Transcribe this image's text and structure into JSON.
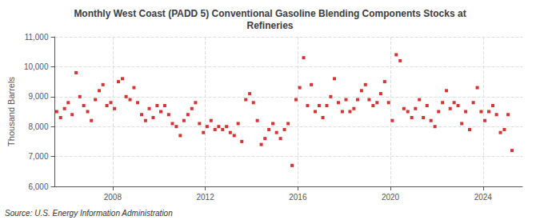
{
  "chart_data": {
    "type": "scatter",
    "title": "Monthly West Coast (PADD 5) Conventional Gasoline Blending Components Stocks at\nRefineries",
    "ylabel": "Thousand Barrels",
    "annotation": "Source: U.S. Energy Information Administration",
    "color": "#cc0000",
    "marker": "square",
    "grid": true,
    "xlim": [
      2005.5,
      2025.7
    ],
    "xticks": [
      2008,
      2012,
      2016,
      2020,
      2024
    ],
    "ylim": [
      6000,
      11000
    ],
    "yticks": [
      {
        "value": 6000,
        "label": "6,000"
      },
      {
        "value": 7000,
        "label": "7,000"
      },
      {
        "value": 8000,
        "label": "8,000"
      },
      {
        "value": 9000,
        "label": "9,000"
      },
      {
        "value": 10000,
        "label": "10,000"
      },
      {
        "value": 11000,
        "label": "11,000"
      }
    ],
    "x": [
      2005.58,
      2005.75,
      2005.92,
      2006.08,
      2006.25,
      2006.42,
      2006.58,
      2006.75,
      2006.92,
      2007.08,
      2007.25,
      2007.42,
      2007.58,
      2007.75,
      2007.92,
      2008.08,
      2008.25,
      2008.42,
      2008.58,
      2008.75,
      2008.92,
      2009.08,
      2009.25,
      2009.42,
      2009.58,
      2009.75,
      2009.92,
      2010.08,
      2010.25,
      2010.42,
      2010.58,
      2010.75,
      2010.92,
      2011.08,
      2011.25,
      2011.42,
      2011.58,
      2011.75,
      2011.92,
      2012.08,
      2012.25,
      2012.42,
      2012.58,
      2012.75,
      2012.92,
      2013.08,
      2013.25,
      2013.42,
      2013.58,
      2013.75,
      2013.92,
      2014.08,
      2014.25,
      2014.42,
      2014.58,
      2014.75,
      2014.92,
      2015.08,
      2015.25,
      2015.42,
      2015.58,
      2015.75,
      2015.92,
      2016.08,
      2016.25,
      2016.42,
      2016.58,
      2016.75,
      2016.92,
      2017.08,
      2017.25,
      2017.42,
      2017.58,
      2017.75,
      2017.92,
      2018.08,
      2018.25,
      2018.42,
      2018.58,
      2018.75,
      2018.92,
      2019.08,
      2019.25,
      2019.42,
      2019.58,
      2019.75,
      2019.92,
      2020.08,
      2020.25,
      2020.42,
      2020.58,
      2020.75,
      2020.92,
      2021.08,
      2021.25,
      2021.42,
      2021.58,
      2021.75,
      2021.92,
      2022.08,
      2022.25,
      2022.42,
      2022.58,
      2022.75,
      2022.92,
      2023.08,
      2023.25,
      2023.42,
      2023.58,
      2023.75,
      2023.92,
      2024.08,
      2024.25,
      2024.42,
      2024.58,
      2024.75,
      2024.92,
      2025.08,
      2025.25
    ],
    "values": [
      8500,
      8300,
      8600,
      8800,
      8400,
      9800,
      9000,
      8700,
      8500,
      8200,
      8900,
      9200,
      9400,
      8700,
      8800,
      8600,
      9500,
      9600,
      9000,
      8900,
      9300,
      8800,
      8400,
      8200,
      8600,
      8300,
      8700,
      8500,
      8700,
      8400,
      8100,
      8000,
      7700,
      8200,
      8400,
      8600,
      8800,
      8100,
      7800,
      8000,
      8200,
      7900,
      8000,
      7900,
      8000,
      7800,
      7700,
      8100,
      7500,
      8900,
      9100,
      8800,
      8200,
      7400,
      7600,
      7900,
      8100,
      7800,
      7600,
      7900,
      8100,
      6700,
      8900,
      9300,
      10300,
      8700,
      9400,
      8500,
      8700,
      8300,
      8700,
      9000,
      9600,
      8800,
      8500,
      8900,
      8500,
      8600,
      8900,
      9200,
      9400,
      8900,
      8700,
      8800,
      9100,
      9500,
      8800,
      8200,
      10400,
      10200,
      8600,
      8500,
      8300,
      8600,
      8900,
      8300,
      8700,
      8200,
      8000,
      8500,
      8800,
      9200,
      8600,
      8800,
      8700,
      8100,
      8500,
      7900,
      8800,
      9300,
      8500,
      8200,
      8500,
      8700,
      8400,
      7800,
      7900,
      8400,
      7200
    ]
  }
}
